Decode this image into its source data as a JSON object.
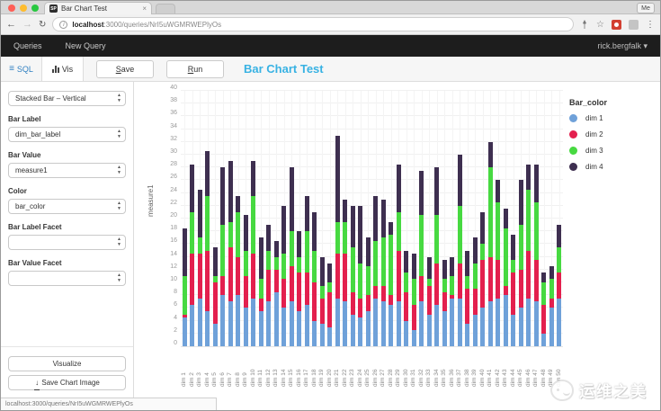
{
  "browser": {
    "tab_title": "Bar Chart Test",
    "favicon_text": "SP",
    "close_glyph": "×",
    "profile_button": "Me",
    "back_glyph": "←",
    "forward_glyph": "→",
    "reload_glyph": "↻",
    "info_glyph": "i",
    "url_host": "localhost",
    "url_rest": ":3000/queries/NrI5uWGMRWEPlyOs",
    "star_glyph": "☆",
    "menu_glyph": "⋮",
    "status_url": "localhost:3000/queries/NrI5uWGMRWEPlyOs"
  },
  "nav": {
    "items": {
      "queries": "Queries",
      "new_query": "New Query"
    },
    "user": "rick.bergfalk",
    "caret": "▾"
  },
  "toolbar": {
    "sql_tab": "SQL",
    "sql_icon_glyph": "≡",
    "vis_tab": "Vis",
    "save_key": "S",
    "save_rest": "ave",
    "run_key": "R",
    "run_rest": "un",
    "query_title": "Bar Chart Test"
  },
  "sidebar": {
    "chart_type": "Stacked Bar – Vertical",
    "fields": [
      {
        "label": "Bar Label",
        "value": "dim_bar_label"
      },
      {
        "label": "Bar Value",
        "value": "measure1"
      },
      {
        "label": "Color",
        "value": "bar_color"
      },
      {
        "label": "Bar Label Facet",
        "value": ""
      },
      {
        "label": "Bar Value Facet",
        "value": ""
      }
    ],
    "visualize_button": "Visualize",
    "save_image_button": "Save Chart Image",
    "download_glyph": "↓"
  },
  "chart_data": {
    "type": "bar",
    "stacked": true,
    "orientation": "vertical",
    "ylabel": "measure1",
    "ylim": [
      0,
      40
    ],
    "ytick_step": 2,
    "grid": true,
    "legend_position": "right",
    "legend_title": "Bar_color",
    "categories": [
      "dim 1",
      "dim 2",
      "dim 3",
      "dim 4",
      "dim 5",
      "dim 6",
      "dim 7",
      "dim 8",
      "dim 9",
      "dim 10",
      "dim 11",
      "dim 12",
      "dim 13",
      "dim 14",
      "dim 15",
      "dim 16",
      "dim 17",
      "dim 18",
      "dim 19",
      "dim 20",
      "dim 21",
      "dim 22",
      "dim 23",
      "dim 24",
      "dim 25",
      "dim 26",
      "dim 27",
      "dim 28",
      "dim 29",
      "dim 30",
      "dim 31",
      "dim 32",
      "dim 33",
      "dim 34",
      "dim 35",
      "dim 36",
      "dim 37",
      "dim 38",
      "dim 39",
      "dim 40",
      "dim 41",
      "dim 42",
      "dim 43",
      "dim 44",
      "dim 45",
      "dim 46",
      "dim 47",
      "dim 48",
      "dim 49",
      "dim 50"
    ],
    "series": [
      {
        "name": "dim 1",
        "color": "#6FA1D9",
        "values": [
          4.5,
          6.5,
          7.5,
          5.5,
          3.5,
          8,
          7,
          8,
          6,
          7.5,
          5.5,
          7,
          8.5,
          6,
          7,
          5.5,
          6.5,
          4,
          3.5,
          3,
          7.5,
          7,
          5,
          4.5,
          5.5,
          7.5,
          7,
          6.5,
          7,
          4,
          2.5,
          7,
          5,
          6.5,
          5.5,
          7.5,
          7.5,
          3.5,
          5,
          6,
          7,
          7.5,
          8,
          5,
          6,
          7.5,
          7,
          2,
          6,
          7.5
        ]
      },
      {
        "name": "dim 2",
        "color": "#E3204E",
        "values": [
          0.5,
          8,
          7,
          9.5,
          6.5,
          3,
          8.5,
          6,
          5,
          7,
          2,
          5,
          3.5,
          4.5,
          5.5,
          6,
          5,
          6,
          4,
          5.5,
          7,
          7.5,
          3.5,
          3,
          2.5,
          2,
          2.5,
          1.5,
          8,
          4.5,
          4,
          4,
          4.5,
          6.5,
          3,
          0.5,
          5.5,
          5.5,
          4,
          7.5,
          7,
          6,
          1.5,
          6.5,
          6,
          7.5,
          6.5,
          4.5,
          1.5,
          4
        ]
      },
      {
        "name": "dim 3",
        "color": "#47D941",
        "values": [
          6,
          6.5,
          2.5,
          8.5,
          1,
          8,
          4,
          7,
          4,
          9,
          3,
          3,
          2,
          4,
          5.5,
          2.5,
          6.5,
          5,
          2,
          1.5,
          5,
          5,
          7,
          5.5,
          4.5,
          7,
          7.5,
          9.5,
          6,
          3,
          4,
          9.5,
          1,
          7.5,
          2,
          3,
          9,
          2,
          4,
          2.5,
          14,
          9,
          9,
          2,
          7,
          9.5,
          9,
          3.5,
          3,
          4
        ]
      },
      {
        "name": "dim 4",
        "color": "#3E2F50",
        "values": [
          7.5,
          7.5,
          7.5,
          7,
          4.5,
          9,
          9.5,
          2.5,
          5.5,
          5.5,
          6.5,
          4,
          2.5,
          7.5,
          10,
          4,
          5.5,
          6,
          4.5,
          3,
          13.5,
          3.5,
          6.5,
          9,
          4.5,
          7,
          6,
          2,
          7.5,
          3.5,
          4,
          7,
          3.5,
          7.5,
          3,
          3,
          8,
          4,
          4,
          5,
          4,
          3.5,
          3,
          4,
          7,
          4,
          6,
          1.5,
          2,
          3.5
        ]
      }
    ]
  },
  "watermark": {
    "text": "运维之美"
  }
}
